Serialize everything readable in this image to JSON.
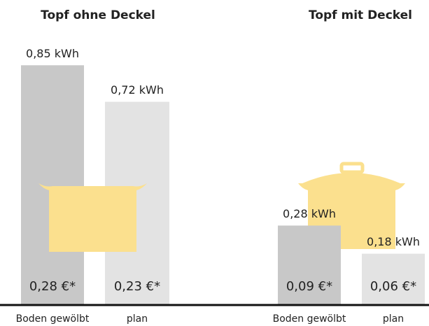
{
  "chart_data": [
    {
      "type": "bar",
      "title": "Topf ohne Deckel",
      "categories": [
        "Boden gewölbt",
        "plan"
      ],
      "values": [
        0.85,
        0.72
      ],
      "value_labels": [
        "0,85 kWh",
        "0,72 kWh"
      ],
      "annotations": [
        "0,28 €*",
        "0,23 €*"
      ],
      "colors": [
        "#c8c8c8",
        "#e3e3e3"
      ],
      "ylim": [
        0,
        1
      ]
    },
    {
      "type": "bar",
      "title": "Topf mit Deckel",
      "categories": [
        "Boden gewölbt",
        "plan"
      ],
      "values": [
        0.28,
        0.18
      ],
      "value_labels": [
        "0,28 kWh",
        "0,18 kWh"
      ],
      "annotations": [
        "0,09 €*",
        "0,06 €*"
      ],
      "colors": [
        "#c8c8c8",
        "#e3e3e3"
      ],
      "ylim": [
        0,
        1
      ]
    }
  ]
}
